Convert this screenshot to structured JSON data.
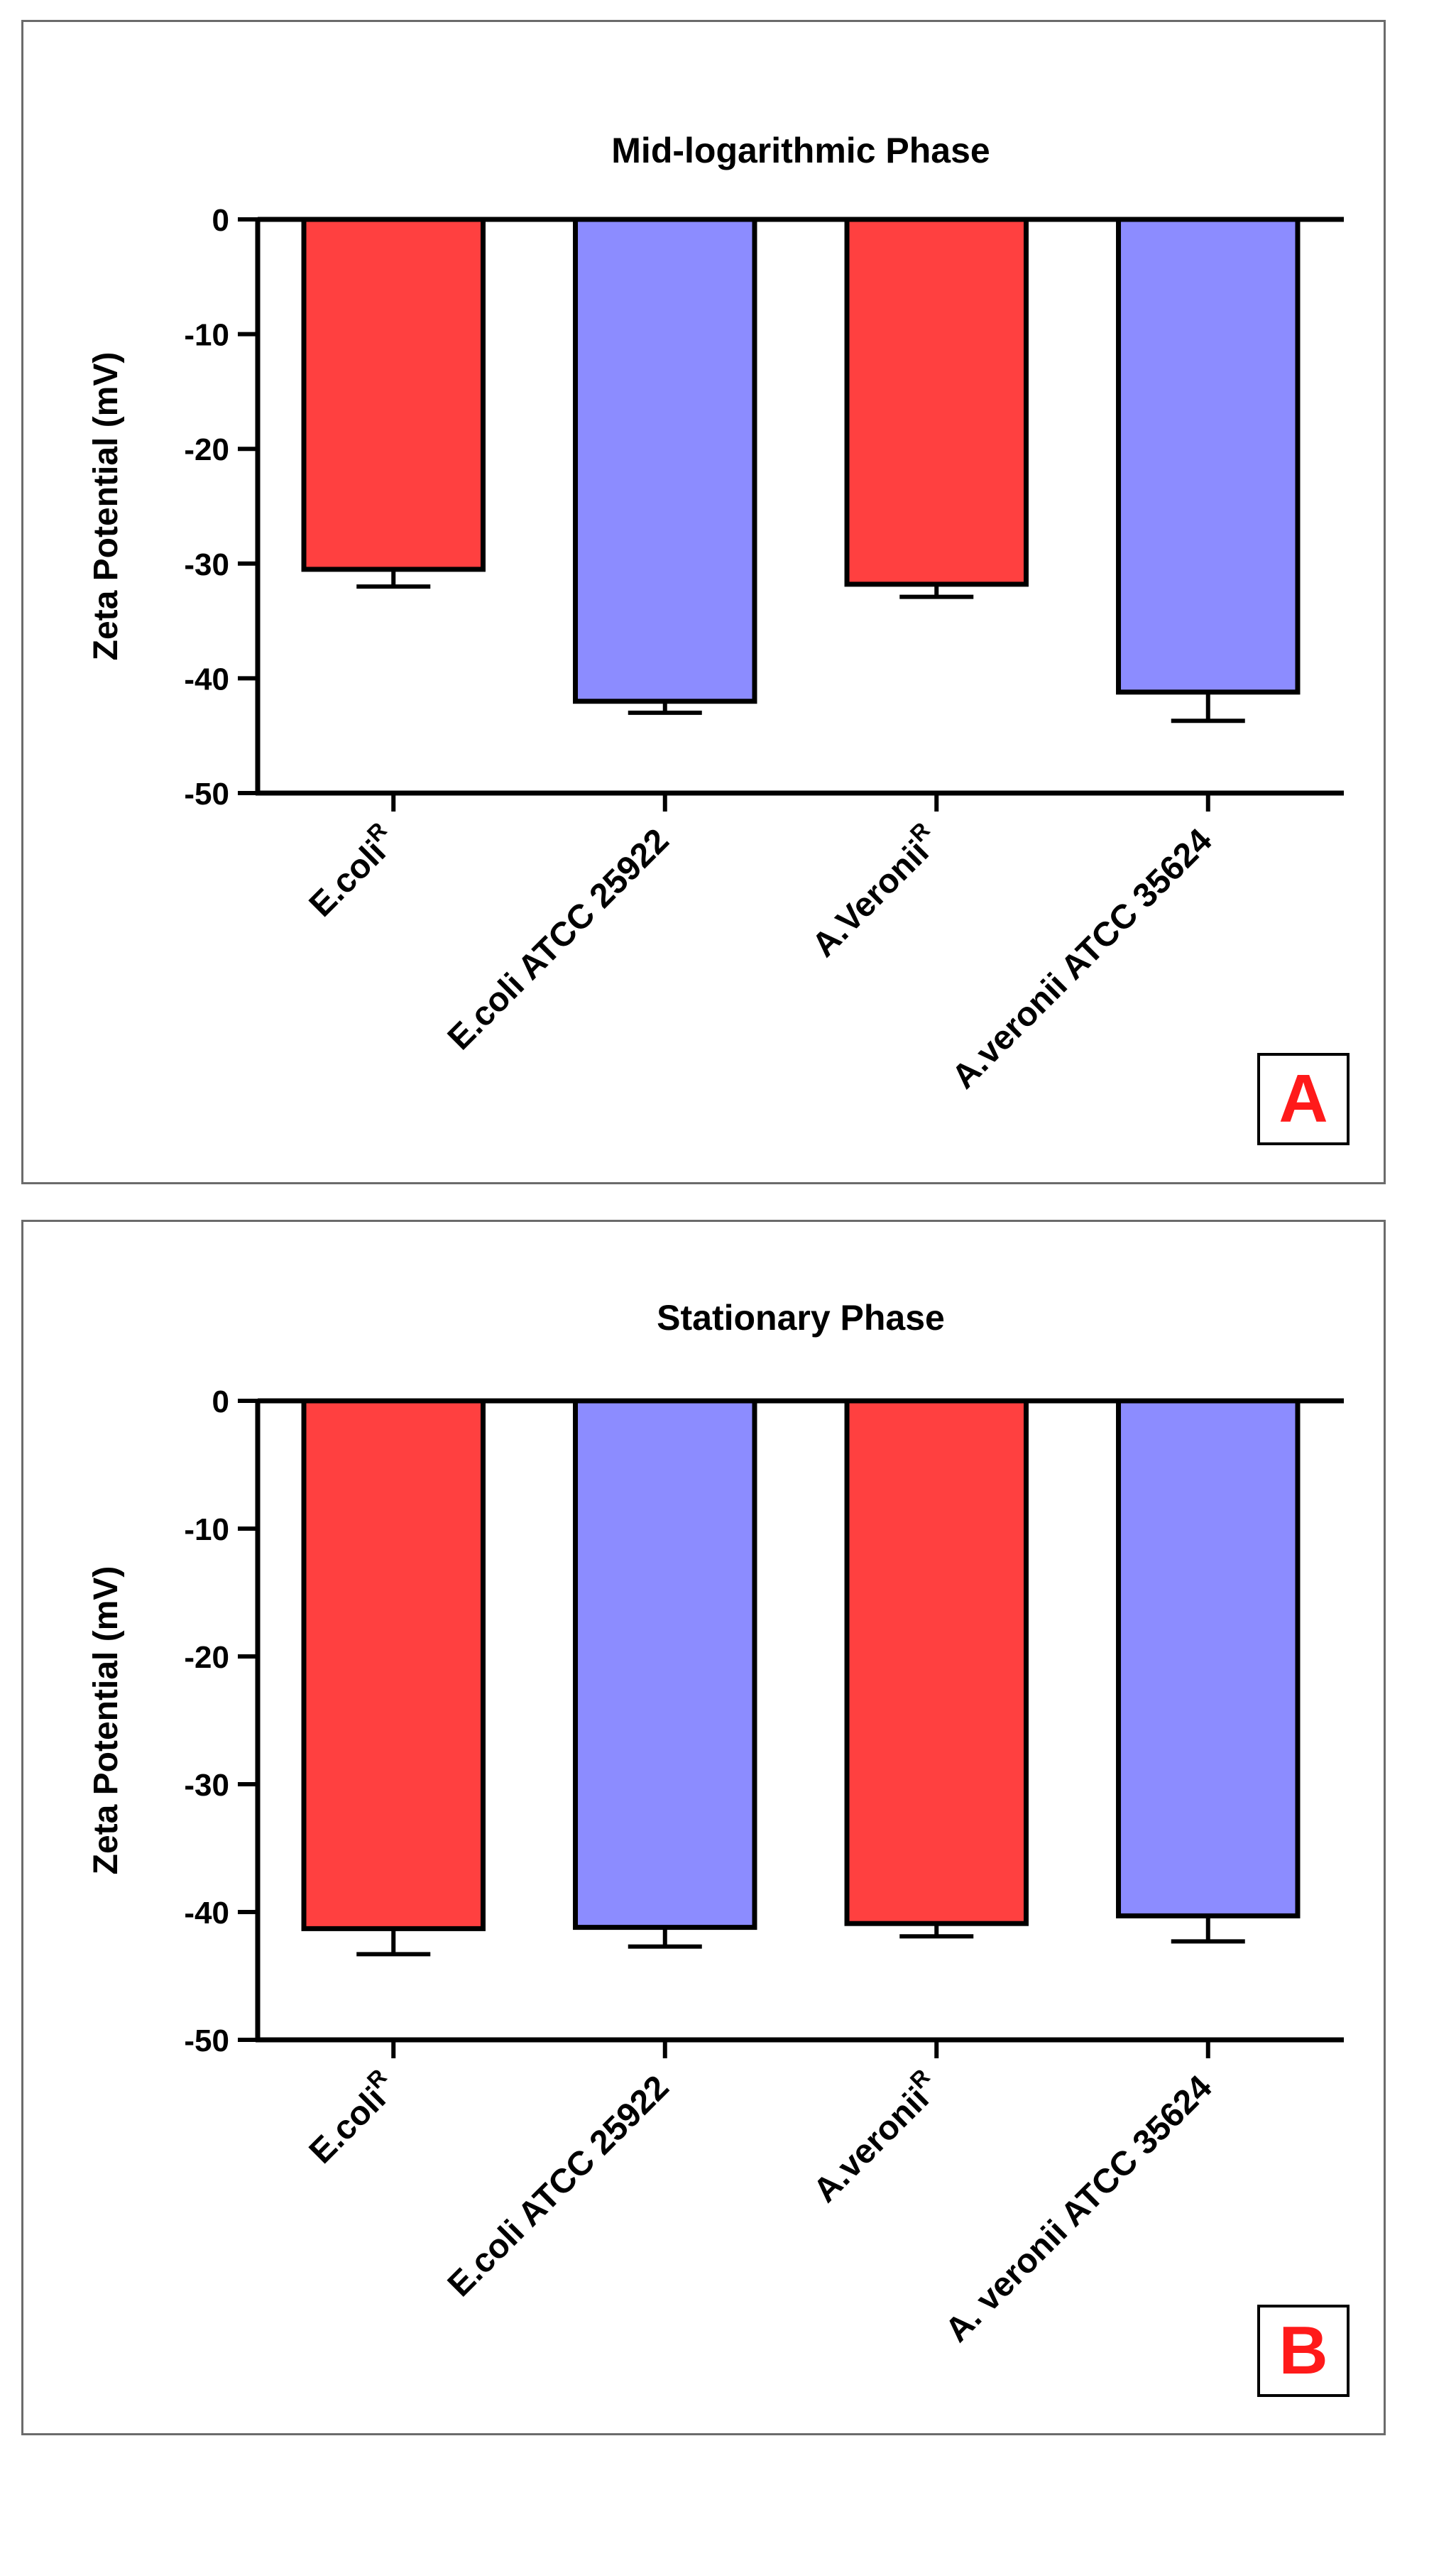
{
  "chart_data": [
    {
      "type": "bar",
      "panel": "A",
      "title": "Mid-logarithmic Phase",
      "ylabel": "Zeta Potential (mV)",
      "xlabel": "",
      "ylim": [
        -50,
        0
      ],
      "yticks": [
        0,
        -10,
        -20,
        -30,
        -40,
        -50
      ],
      "categories": [
        {
          "base": "E.coli",
          "sup": "R"
        },
        {
          "base": "E.coli ATCC 25922",
          "sup": ""
        },
        {
          "base": "A.Veronii",
          "sup": "R"
        },
        {
          "base": "A.veronii ATCC 35624",
          "sup": ""
        }
      ],
      "values": [
        -30.5,
        -42.0,
        -31.8,
        -41.2
      ],
      "errors": [
        1.5,
        1.0,
        1.1,
        2.5
      ],
      "colors": [
        "#ff4040",
        "#8c8cff",
        "#ff4040",
        "#8c8cff"
      ]
    },
    {
      "type": "bar",
      "panel": "B",
      "title": "Stationary Phase",
      "ylabel": "Zeta Potential (mV)",
      "xlabel": "",
      "ylim": [
        -50,
        0
      ],
      "yticks": [
        0,
        -10,
        -20,
        -30,
        -40,
        -50
      ],
      "categories": [
        {
          "base": "E.coli",
          "sup": "R"
        },
        {
          "base": "E.coli ATCC 25922",
          "sup": ""
        },
        {
          "base": "A.veronii",
          "sup": "R"
        },
        {
          "base": "A. veronii ATCC 35624",
          "sup": ""
        }
      ],
      "values": [
        -41.3,
        -41.2,
        -40.9,
        -40.3
      ],
      "errors": [
        2.0,
        1.5,
        1.0,
        2.0
      ],
      "colors": [
        "#ff4040",
        "#8c8cff",
        "#ff4040",
        "#8c8cff"
      ]
    }
  ]
}
